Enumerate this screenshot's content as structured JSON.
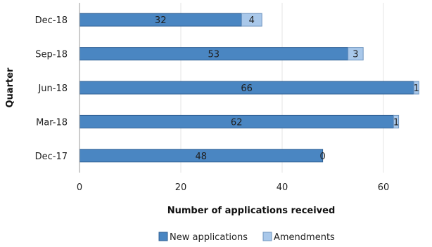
{
  "chart_data": {
    "type": "bar",
    "orientation": "horizontal",
    "stacked": true,
    "categories": [
      "Dec-17",
      "Mar-18",
      "Jun-18",
      "Sep-18",
      "Dec-18"
    ],
    "series": [
      {
        "name": "New applications",
        "values": [
          48,
          62,
          66,
          53,
          32
        ],
        "color": "#4a86c2"
      },
      {
        "name": "Amendments",
        "values": [
          0,
          1,
          1,
          3,
          4
        ],
        "color": "#a9c8ea"
      }
    ],
    "xlabel": "Number of applications received",
    "ylabel": "Quarter",
    "xlim": [
      0,
      68
    ],
    "x_ticks": [
      0,
      20,
      40,
      60
    ],
    "grid": "vertical",
    "legend_position": "bottom"
  }
}
